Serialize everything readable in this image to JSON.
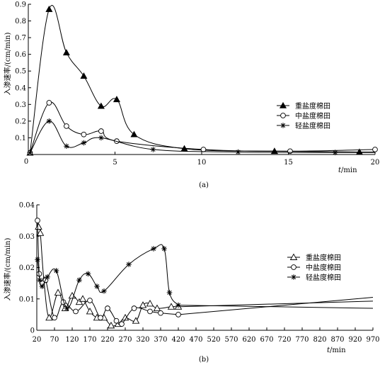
{
  "chart_data": [
    {
      "type": "line",
      "caption": "(a)",
      "ylabel": "入渗速率/(cm/min)",
      "xlabel": "t/min",
      "xlabel_var": "t",
      "xlabel_unit": "/min",
      "xlim": [
        0,
        20
      ],
      "ylim": [
        0,
        0.9
      ],
      "xticks": [
        0,
        5,
        10,
        15,
        20
      ],
      "yticks": [
        0.1,
        0.2,
        0.3,
        0.4,
        0.5,
        0.6,
        0.7,
        0.8,
        0.9
      ],
      "ytick_labels": [
        "0.1",
        "0.2",
        "0.3",
        "0.4",
        "0.5",
        "0.6",
        "0.7",
        "0.8",
        "0.9"
      ],
      "origin_label": "0",
      "legend_position": "right",
      "series": [
        {
          "name": "重盐度棉田",
          "marker": "triangle",
          "x": [
            0.1,
            1.2,
            2.2,
            3.2,
            4.2,
            5.1,
            6.1,
            9.0,
            14.2,
            19.1
          ],
          "y": [
            0.01,
            0.87,
            0.61,
            0.47,
            0.29,
            0.33,
            0.12,
            0.035,
            0.02,
            0.015
          ],
          "end": [
            20,
            0.015
          ]
        },
        {
          "name": "中盐度棉田",
          "marker": "circle",
          "x": [
            0.1,
            1.2,
            2.2,
            3.2,
            4.2,
            5.1,
            10.1,
            15.1,
            20
          ],
          "y": [
            0.01,
            0.31,
            0.17,
            0.12,
            0.14,
            0.08,
            0.03,
            0.02,
            0.03
          ]
        },
        {
          "name": "轻盐度棉田",
          "marker": "asterisk",
          "x": [
            0.1,
            1.2,
            2.2,
            3.2,
            4.2,
            7.2,
            12.1,
            17.7
          ],
          "y": [
            0.01,
            0.2,
            0.05,
            0.07,
            0.1,
            0.03,
            0.015,
            0.012
          ],
          "end": [
            20,
            0.012
          ]
        }
      ]
    },
    {
      "type": "line",
      "caption": "(b)",
      "ylabel": "入渗速率/(cm/min)",
      "xlabel": "t/min",
      "xlabel_var": "t",
      "xlabel_unit": "/min",
      "xlim": [
        20,
        970
      ],
      "ylim": [
        0,
        0.04
      ],
      "xticks": [
        20,
        70,
        120,
        170,
        220,
        270,
        320,
        370,
        420,
        470,
        520,
        570,
        620,
        670,
        720,
        770,
        820,
        870,
        920,
        970
      ],
      "xtick_labels": [
        "20",
        "70",
        "120",
        "170",
        "220",
        "270",
        "320",
        "370",
        "420",
        "470",
        "520",
        "570",
        "620",
        "670",
        "720",
        "770",
        "820",
        "870",
        "920",
        "970"
      ],
      "yticks": [
        0,
        0.01,
        0.02,
        0.03,
        0.04
      ],
      "ytick_labels": [
        "0",
        "0.01",
        "0.02",
        "0.03",
        "0.04"
      ],
      "legend_position": "right",
      "series": [
        {
          "name": "重盐度棉田",
          "marker": "triangle",
          "x": [
            25,
            30,
            40,
            55,
            80,
            100,
            120,
            140,
            150,
            170,
            190,
            210,
            230,
            250,
            270,
            300,
            320,
            340,
            360,
            400,
            420
          ],
          "y": [
            0.033,
            0.031,
            0.016,
            0.004,
            0.012,
            0.007,
            0.011,
            0.009,
            0.01,
            0.006,
            0.004,
            0.004,
            0.0015,
            0.002,
            0.004,
            0.003,
            0.008,
            0.0085,
            0.007,
            0.0075,
            0.0075
          ],
          "end": [
            970,
            0.0093
          ]
        },
        {
          "name": "中盐度棉田",
          "marker": "circle",
          "x": [
            22,
            27,
            35,
            45,
            70,
            95,
            130,
            170,
            200,
            220,
            245,
            260,
            295,
            340,
            370,
            420
          ],
          "y": [
            0.035,
            0.018,
            0.015,
            0.016,
            0.004,
            0.009,
            0.006,
            0.0095,
            0.004,
            0.007,
            0.003,
            0.002,
            0.007,
            0.006,
            0.0055,
            0.005
          ],
          "end": [
            970,
            0.0105
          ]
        },
        {
          "name": "轻盐度棉田",
          "marker": "asterisk",
          "x": [
            22,
            28,
            35,
            50,
            75,
            105,
            140,
            165,
            190,
            210,
            280,
            350,
            380,
            395,
            420
          ],
          "y": [
            0.0225,
            0.016,
            0.014,
            0.017,
            0.019,
            0.007,
            0.016,
            0.018,
            0.014,
            0.0125,
            0.021,
            0.026,
            0.026,
            0.012,
            0.008
          ],
          "end": [
            970,
            0.007
          ]
        }
      ]
    }
  ]
}
